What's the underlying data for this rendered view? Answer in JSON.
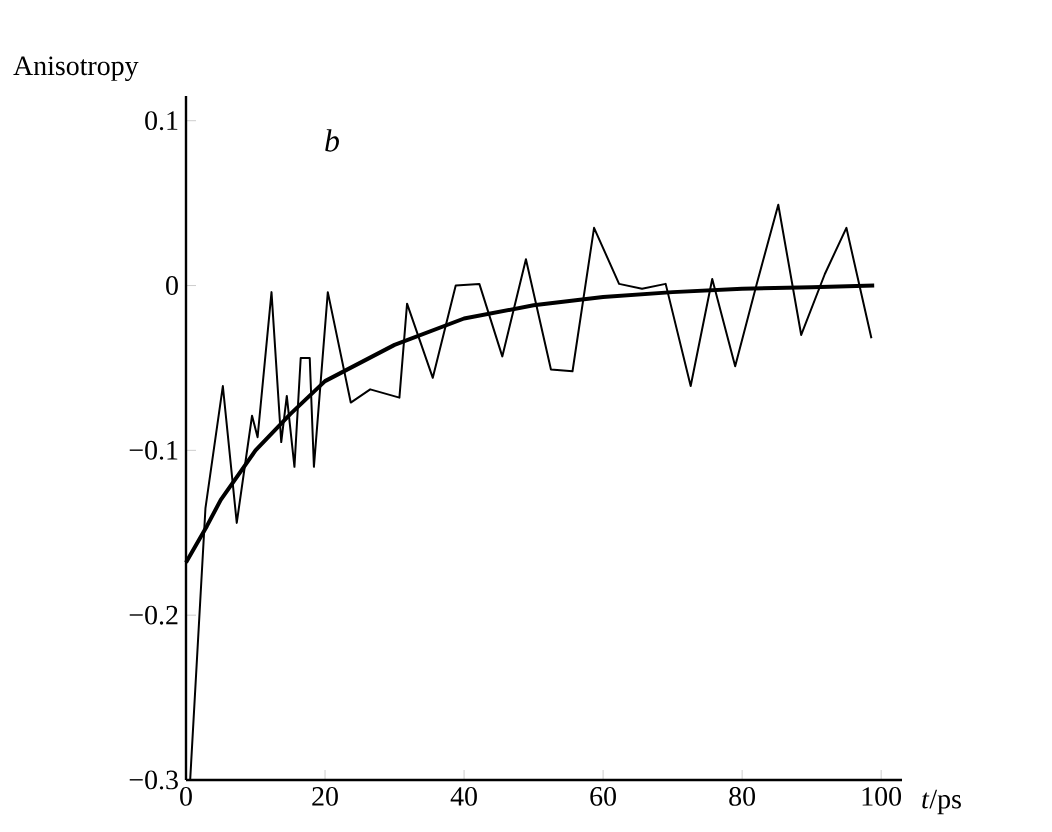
{
  "chart_data": {
    "type": "line",
    "ylabel": "Anisotropy",
    "xlabel": "*t*/ps",
    "annotations": [
      "b"
    ],
    "xlim": [
      0,
      103
    ],
    "xticks": [
      0,
      20,
      40,
      60,
      80,
      100
    ],
    "ylim": [
      -0.3,
      0.115
    ],
    "yticks": [
      {
        "value": -0.3,
        "label": "−0.3"
      },
      {
        "value": -0.2,
        "label": "−0.2"
      },
      {
        "value": -0.1,
        "label": "−0.1"
      },
      0,
      0.1
    ],
    "grid": false,
    "marker": "none",
    "line_style": "solid",
    "series": [
      {
        "color": "#000000",
        "x": [
          0.6,
          2.8,
          5.3,
          7.3,
          9.5,
          10.3,
          12.3,
          13.7,
          14.5,
          15.6,
          16.5,
          17.8,
          18.4,
          20.4,
          23.7,
          26.5,
          30.7,
          31.8,
          35.5,
          38.8,
          42.2,
          45.5,
          48.9,
          52.5,
          55.6,
          58.7,
          62.3,
          65.6,
          69,
          72.6,
          75.7,
          79,
          82.1,
          85.2,
          88.5,
          91.9,
          95,
          98.6
        ],
        "values": [
          -0.3,
          -0.135,
          -0.061,
          -0.144,
          -0.079,
          -0.092,
          -0.004,
          -0.095,
          -0.067,
          -0.11,
          -0.044,
          -0.044,
          -0.11,
          -0.004,
          -0.071,
          -0.063,
          -0.068,
          -0.011,
          -0.056,
          0.0,
          0.001,
          -0.043,
          0.016,
          -0.051,
          -0.052,
          0.035,
          0.001,
          -0.002,
          0.001,
          -0.061,
          0.004,
          -0.049,
          0.001,
          0.049,
          -0.03,
          0.007,
          0.035,
          -0.032
        ]
      },
      {
        "color": "#000000",
        "x": [
          0,
          3,
          5,
          10,
          15,
          20,
          30,
          40,
          50,
          60,
          70,
          80,
          90,
          99
        ],
        "values": [
          -0.168,
          -0.146,
          -0.13,
          -0.1,
          -0.078,
          -0.058,
          -0.036,
          -0.02,
          -0.012,
          -0.007,
          -0.004,
          -0.002,
          -0.001,
          0.0
        ]
      }
    ]
  }
}
